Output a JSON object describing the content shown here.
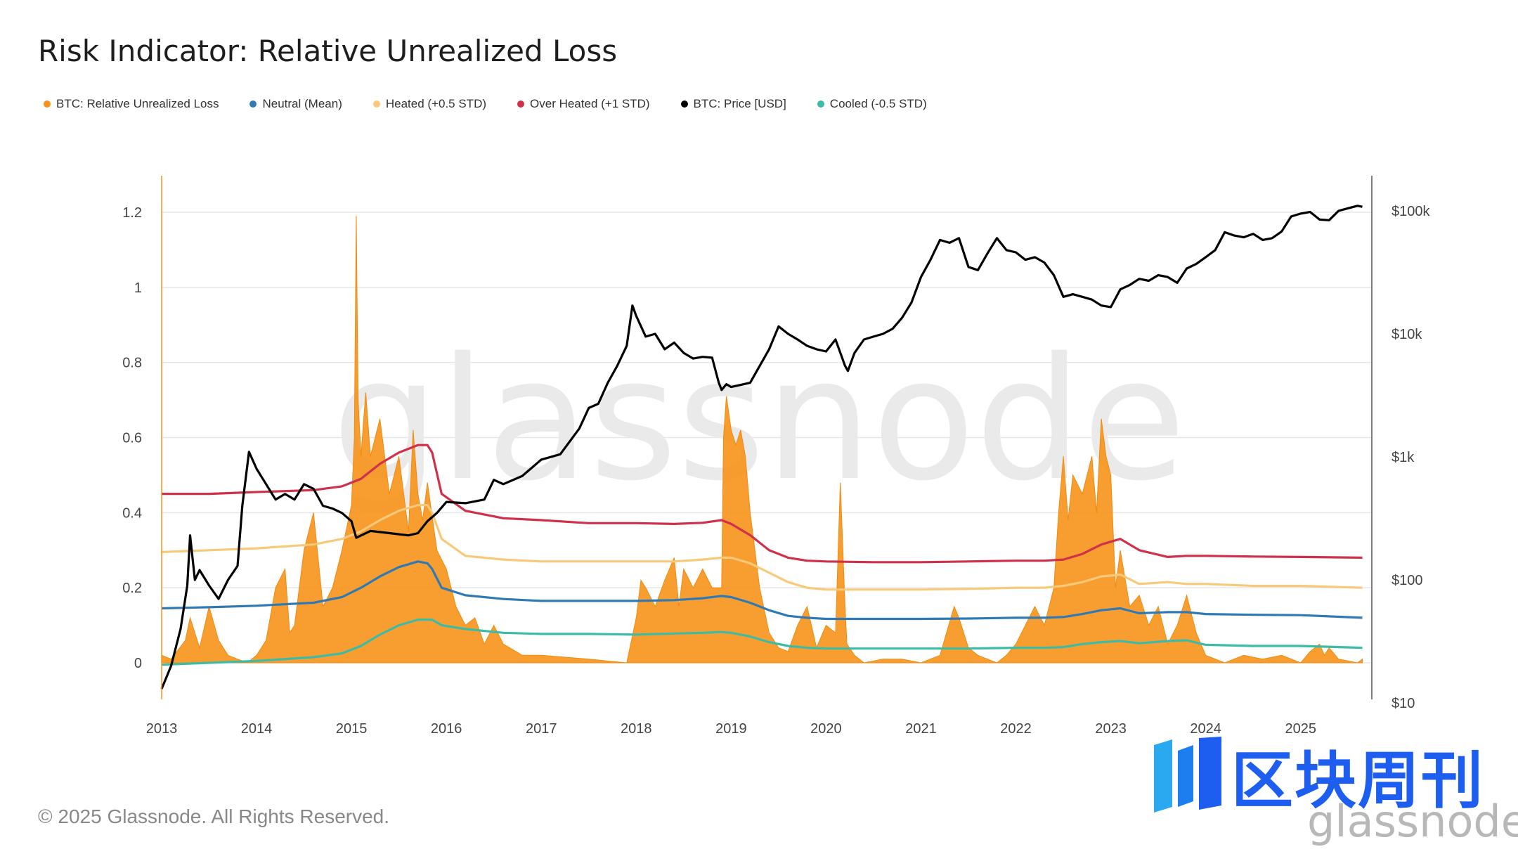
{
  "chart_data": {
    "type": "area",
    "title": "Risk Indicator: Relative Unrealized Loss",
    "left_axis": {
      "ticks": [
        "0",
        "0.2",
        "0.4",
        "0.6",
        "0.8",
        "1",
        "1.2"
      ],
      "ylim": [
        -0.1,
        1.3
      ]
    },
    "right_axis": {
      "scale": "log",
      "ticks": [
        "$10",
        "$100",
        "$1k",
        "$10k",
        "$100k"
      ],
      "ylim": [
        10,
        100000
      ]
    },
    "x_ticks": [
      "2013",
      "2014",
      "2015",
      "2016",
      "2017",
      "2018",
      "2019",
      "2020",
      "2021",
      "2022",
      "2023",
      "2024",
      "2025"
    ],
    "xlim": [
      2013.0,
      2025.75
    ],
    "legend": [
      {
        "name": "BTC: Relative Unrealized Loss",
        "color": "#f7931a"
      },
      {
        "name": "Neutral (Mean)",
        "color": "#2f7ab5"
      },
      {
        "name": "Heated (+0.5 STD)",
        "color": "#f9c97a"
      },
      {
        "name": "Over Heated (+1 STD)",
        "color": "#d0304a"
      },
      {
        "name": "BTC: Price [USD]",
        "color": "#000000"
      },
      {
        "name": "Cooled (-0.5 STD)",
        "color": "#3cbba6"
      }
    ],
    "series": [
      {
        "name": "BTC: Relative Unrealized Loss",
        "axis": "left",
        "type": "area",
        "x": [
          2013.0,
          2013.1,
          2013.25,
          2013.3,
          2013.4,
          2013.5,
          2013.6,
          2013.7,
          2013.8,
          2013.9,
          2014.0,
          2014.1,
          2014.2,
          2014.3,
          2014.35,
          2014.4,
          2014.5,
          2014.6,
          2014.7,
          2014.8,
          2014.9,
          2015.0,
          2015.03,
          2015.05,
          2015.07,
          2015.1,
          2015.15,
          2015.2,
          2015.3,
          2015.4,
          2015.5,
          2015.6,
          2015.65,
          2015.7,
          2015.75,
          2015.8,
          2015.9,
          2016.0,
          2016.1,
          2016.2,
          2016.3,
          2016.4,
          2016.5,
          2016.6,
          2016.8,
          2017.0,
          2017.5,
          2017.9,
          2018.0,
          2018.05,
          2018.1,
          2018.2,
          2018.3,
          2018.4,
          2018.45,
          2018.5,
          2018.6,
          2018.7,
          2018.8,
          2018.9,
          2018.92,
          2018.95,
          2019.0,
          2019.05,
          2019.1,
          2019.15,
          2019.2,
          2019.3,
          2019.4,
          2019.5,
          2019.6,
          2019.7,
          2019.8,
          2019.9,
          2020.0,
          2020.1,
          2020.15,
          2020.2,
          2020.22,
          2020.3,
          2020.4,
          2020.6,
          2020.8,
          2021.0,
          2021.2,
          2021.35,
          2021.4,
          2021.5,
          2021.6,
          2021.8,
          2021.9,
          2022.0,
          2022.1,
          2022.2,
          2022.3,
          2022.4,
          2022.45,
          2022.5,
          2022.55,
          2022.6,
          2022.7,
          2022.8,
          2022.85,
          2022.9,
          2022.95,
          2023.0,
          2023.05,
          2023.1,
          2023.2,
          2023.3,
          2023.4,
          2023.5,
          2023.6,
          2023.7,
          2023.8,
          2023.9,
          2024.0,
          2024.2,
          2024.4,
          2024.6,
          2024.8,
          2025.0,
          2025.1,
          2025.2,
          2025.25,
          2025.3,
          2025.4,
          2025.6,
          2025.65
        ],
        "y": [
          0.02,
          0.01,
          0.06,
          0.12,
          0.04,
          0.15,
          0.06,
          0.02,
          0.01,
          0.0,
          0.02,
          0.06,
          0.2,
          0.25,
          0.08,
          0.1,
          0.3,
          0.4,
          0.15,
          0.2,
          0.3,
          0.42,
          0.6,
          1.19,
          0.7,
          0.55,
          0.72,
          0.55,
          0.65,
          0.45,
          0.55,
          0.35,
          0.62,
          0.45,
          0.38,
          0.48,
          0.3,
          0.25,
          0.15,
          0.1,
          0.12,
          0.05,
          0.1,
          0.05,
          0.02,
          0.02,
          0.01,
          0.0,
          0.12,
          0.22,
          0.2,
          0.15,
          0.22,
          0.28,
          0.15,
          0.25,
          0.2,
          0.25,
          0.2,
          0.2,
          0.6,
          0.71,
          0.62,
          0.58,
          0.62,
          0.55,
          0.4,
          0.2,
          0.08,
          0.04,
          0.03,
          0.1,
          0.15,
          0.04,
          0.1,
          0.08,
          0.48,
          0.15,
          0.05,
          0.02,
          0.0,
          0.01,
          0.01,
          0.0,
          0.02,
          0.15,
          0.12,
          0.04,
          0.02,
          0.0,
          0.02,
          0.05,
          0.1,
          0.15,
          0.1,
          0.2,
          0.4,
          0.55,
          0.38,
          0.5,
          0.45,
          0.55,
          0.4,
          0.65,
          0.55,
          0.5,
          0.2,
          0.3,
          0.15,
          0.18,
          0.1,
          0.15,
          0.05,
          0.1,
          0.18,
          0.08,
          0.02,
          0.0,
          0.02,
          0.01,
          0.02,
          0.0,
          0.03,
          0.05,
          0.02,
          0.04,
          0.01,
          0.0,
          0.01
        ]
      },
      {
        "name": "Over Heated (+1 STD)",
        "axis": "left",
        "type": "line",
        "x": [
          2013.0,
          2013.5,
          2014.0,
          2014.6,
          2014.9,
          2015.1,
          2015.3,
          2015.5,
          2015.7,
          2015.8,
          2015.85,
          2015.95,
          2016.2,
          2016.6,
          2017.0,
          2017.5,
          2018.0,
          2018.4,
          2018.7,
          2018.9,
          2019.0,
          2019.2,
          2019.4,
          2019.6,
          2019.8,
          2020.0,
          2020.5,
          2021.0,
          2021.5,
          2022.0,
          2022.3,
          2022.5,
          2022.7,
          2022.9,
          2023.1,
          2023.3,
          2023.6,
          2023.8,
          2024.0,
          2024.5,
          2025.0,
          2025.65
        ],
        "y": [
          0.45,
          0.45,
          0.455,
          0.46,
          0.47,
          0.49,
          0.53,
          0.56,
          0.58,
          0.58,
          0.56,
          0.45,
          0.405,
          0.385,
          0.38,
          0.372,
          0.372,
          0.37,
          0.373,
          0.38,
          0.37,
          0.34,
          0.3,
          0.28,
          0.272,
          0.27,
          0.268,
          0.268,
          0.27,
          0.272,
          0.272,
          0.275,
          0.29,
          0.315,
          0.33,
          0.3,
          0.282,
          0.285,
          0.285,
          0.283,
          0.282,
          0.28
        ]
      },
      {
        "name": "Heated (+0.5 STD)",
        "axis": "left",
        "type": "line",
        "x": [
          2013.0,
          2013.5,
          2014.0,
          2014.6,
          2014.9,
          2015.1,
          2015.3,
          2015.5,
          2015.7,
          2015.8,
          2015.85,
          2015.95,
          2016.2,
          2016.6,
          2017.0,
          2017.5,
          2018.0,
          2018.4,
          2018.7,
          2018.9,
          2019.0,
          2019.2,
          2019.4,
          2019.6,
          2019.8,
          2020.0,
          2020.5,
          2021.0,
          2021.5,
          2022.0,
          2022.3,
          2022.5,
          2022.7,
          2022.9,
          2023.1,
          2023.3,
          2023.6,
          2023.8,
          2024.0,
          2024.5,
          2025.0,
          2025.65
        ],
        "y": [
          0.295,
          0.3,
          0.305,
          0.315,
          0.33,
          0.35,
          0.38,
          0.405,
          0.42,
          0.42,
          0.4,
          0.33,
          0.285,
          0.275,
          0.27,
          0.27,
          0.27,
          0.27,
          0.275,
          0.28,
          0.28,
          0.265,
          0.24,
          0.215,
          0.2,
          0.195,
          0.195,
          0.195,
          0.197,
          0.2,
          0.2,
          0.205,
          0.215,
          0.23,
          0.235,
          0.21,
          0.215,
          0.21,
          0.21,
          0.205,
          0.205,
          0.2
        ]
      },
      {
        "name": "Neutral (Mean)",
        "axis": "left",
        "type": "line",
        "x": [
          2013.0,
          2013.5,
          2014.0,
          2014.6,
          2014.9,
          2015.1,
          2015.3,
          2015.5,
          2015.7,
          2015.8,
          2015.85,
          2015.95,
          2016.2,
          2016.6,
          2017.0,
          2017.5,
          2018.0,
          2018.4,
          2018.7,
          2018.9,
          2019.0,
          2019.2,
          2019.4,
          2019.6,
          2019.8,
          2020.0,
          2020.5,
          2021.0,
          2021.5,
          2022.0,
          2022.3,
          2022.5,
          2022.7,
          2022.9,
          2023.1,
          2023.3,
          2023.6,
          2023.8,
          2024.0,
          2024.5,
          2025.0,
          2025.65
        ],
        "y": [
          0.145,
          0.148,
          0.152,
          0.16,
          0.175,
          0.2,
          0.23,
          0.255,
          0.27,
          0.265,
          0.25,
          0.2,
          0.18,
          0.17,
          0.165,
          0.165,
          0.165,
          0.167,
          0.172,
          0.178,
          0.175,
          0.16,
          0.14,
          0.125,
          0.12,
          0.117,
          0.117,
          0.117,
          0.118,
          0.12,
          0.12,
          0.122,
          0.13,
          0.14,
          0.145,
          0.132,
          0.135,
          0.135,
          0.13,
          0.128,
          0.127,
          0.12
        ]
      },
      {
        "name": "Cooled (-0.5 STD)",
        "axis": "left",
        "type": "line",
        "x": [
          2013.0,
          2013.5,
          2014.0,
          2014.6,
          2014.9,
          2015.1,
          2015.3,
          2015.5,
          2015.7,
          2015.8,
          2015.85,
          2015.95,
          2016.2,
          2016.6,
          2017.0,
          2017.5,
          2018.0,
          2018.4,
          2018.7,
          2018.9,
          2019.0,
          2019.2,
          2019.4,
          2019.6,
          2019.8,
          2020.0,
          2020.5,
          2021.0,
          2021.5,
          2022.0,
          2022.3,
          2022.5,
          2022.7,
          2022.9,
          2023.1,
          2023.3,
          2023.6,
          2023.8,
          2024.0,
          2024.5,
          2025.0,
          2025.65
        ],
        "y": [
          -0.005,
          0.0,
          0.005,
          0.015,
          0.025,
          0.045,
          0.075,
          0.1,
          0.115,
          0.115,
          0.115,
          0.1,
          0.09,
          0.08,
          0.077,
          0.077,
          0.075,
          0.078,
          0.08,
          0.082,
          0.08,
          0.07,
          0.055,
          0.045,
          0.04,
          0.038,
          0.038,
          0.038,
          0.038,
          0.04,
          0.04,
          0.042,
          0.05,
          0.055,
          0.058,
          0.052,
          0.058,
          0.06,
          0.048,
          0.045,
          0.045,
          0.04
        ]
      },
      {
        "name": "BTC: Price [USD]",
        "axis": "right",
        "type": "line",
        "x": [
          2013.0,
          2013.1,
          2013.2,
          2013.27,
          2013.3,
          2013.35,
          2013.4,
          2013.5,
          2013.6,
          2013.7,
          2013.8,
          2013.85,
          2013.92,
          2014.0,
          2014.1,
          2014.2,
          2014.3,
          2014.4,
          2014.5,
          2014.6,
          2014.7,
          2014.8,
          2014.9,
          2015.0,
          2015.05,
          2015.2,
          2015.4,
          2015.6,
          2015.7,
          2015.8,
          2015.9,
          2016.0,
          2016.2,
          2016.4,
          2016.5,
          2016.6,
          2016.8,
          2017.0,
          2017.2,
          2017.4,
          2017.5,
          2017.6,
          2017.7,
          2017.8,
          2017.9,
          2017.96,
          2018.0,
          2018.1,
          2018.2,
          2018.3,
          2018.4,
          2018.5,
          2018.6,
          2018.7,
          2018.8,
          2018.87,
          2018.9,
          2018.95,
          2019.0,
          2019.2,
          2019.4,
          2019.5,
          2019.6,
          2019.7,
          2019.8,
          2019.9,
          2020.0,
          2020.1,
          2020.2,
          2020.23,
          2020.3,
          2020.4,
          2020.5,
          2020.6,
          2020.7,
          2020.8,
          2020.9,
          2021.0,
          2021.1,
          2021.2,
          2021.3,
          2021.4,
          2021.5,
          2021.6,
          2021.7,
          2021.8,
          2021.9,
          2022.0,
          2022.1,
          2022.2,
          2022.3,
          2022.4,
          2022.5,
          2022.6,
          2022.7,
          2022.8,
          2022.9,
          2023.0,
          2023.1,
          2023.2,
          2023.3,
          2023.4,
          2023.5,
          2023.6,
          2023.7,
          2023.8,
          2023.9,
          2024.0,
          2024.1,
          2024.2,
          2024.3,
          2024.4,
          2024.5,
          2024.6,
          2024.7,
          2024.8,
          2024.9,
          2025.0,
          2025.1,
          2025.2,
          2025.3,
          2025.4,
          2025.5,
          2025.6,
          2025.65
        ],
        "y": [
          13,
          20,
          40,
          90,
          230,
          100,
          120,
          90,
          70,
          100,
          130,
          400,
          1100,
          800,
          600,
          450,
          500,
          450,
          600,
          550,
          400,
          380,
          350,
          300,
          220,
          250,
          240,
          230,
          240,
          300,
          350,
          430,
          420,
          450,
          650,
          600,
          700,
          950,
          1050,
          1700,
          2500,
          2700,
          4000,
          5500,
          8000,
          17000,
          14000,
          9500,
          10000,
          7500,
          8500,
          7000,
          6300,
          6500,
          6400,
          4000,
          3500,
          3900,
          3700,
          4000,
          7500,
          11500,
          10000,
          9000,
          8000,
          7500,
          7200,
          9000,
          5500,
          5000,
          7000,
          9000,
          9500,
          10000,
          11000,
          13500,
          18000,
          29000,
          40000,
          58000,
          55000,
          60000,
          35000,
          33000,
          45000,
          60000,
          48000,
          46000,
          40000,
          42000,
          38000,
          30000,
          20000,
          21000,
          20000,
          19000,
          17000,
          16500,
          23000,
          25000,
          28000,
          27000,
          30000,
          29000,
          26000,
          34000,
          37000,
          42000,
          48000,
          67000,
          63000,
          61000,
          65000,
          58000,
          60000,
          68000,
          90000,
          95000,
          98000,
          85000,
          84000,
          100000,
          105000,
          110000,
          108000
        ]
      }
    ]
  },
  "watermark": "glassnode",
  "copyright": "© 2025 Glassnode. All Rights Reserved.",
  "brand": {
    "cn": "区块周刊",
    "en": "glassnode"
  }
}
